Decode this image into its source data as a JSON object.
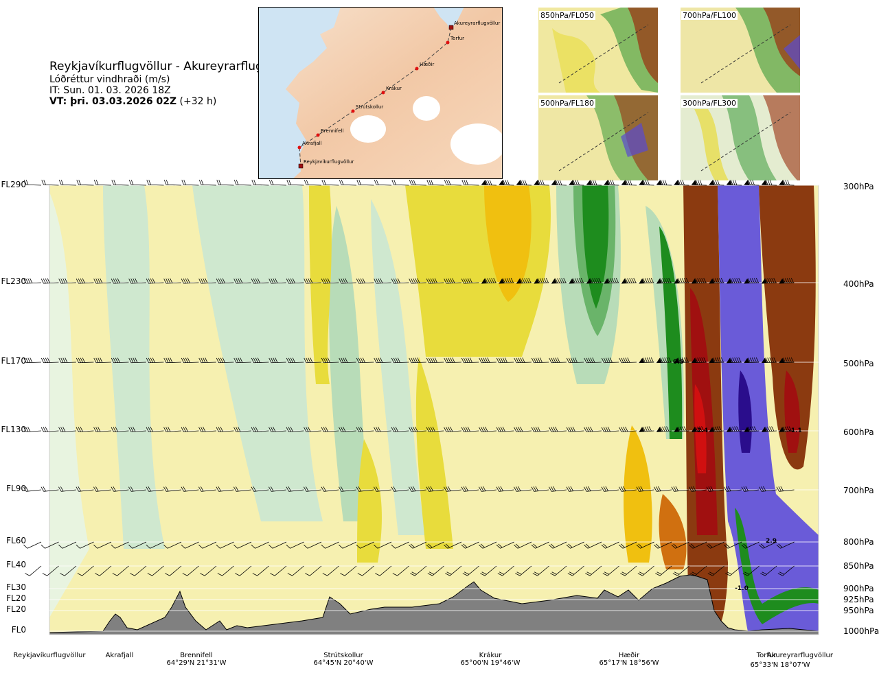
{
  "header": {
    "title": "Reykjavíkurflugvöllur - Akureyrarflugvöllur",
    "subtitle": "Lóðréttur vindhraði (m/s)",
    "init_time": "IT: Sun. 01. 03. 2026 18Z",
    "valid_time_bold": "VT: þri. 03.03.2026 02Z",
    "valid_time_rest": " (+32 h)"
  },
  "map": {
    "waypoints": [
      {
        "name": "Akureyrarflugvöllur"
      },
      {
        "name": "Torfur"
      },
      {
        "name": "Hæðir"
      },
      {
        "name": "Krákur"
      },
      {
        "name": "Strútskollur"
      },
      {
        "name": "Brennifell"
      },
      {
        "name": "Akrafjall"
      },
      {
        "name": "Reykjavíkurflugvöllur"
      }
    ]
  },
  "insets": [
    {
      "label": "850hPa/FL050"
    },
    {
      "label": "700hPa/FL100"
    },
    {
      "label": "500hPa/FL180"
    },
    {
      "label": "300hPa/FL300"
    }
  ],
  "chart_data": {
    "type": "heatmap",
    "title": "Reykjavíkurflugvöllur - Akureyrarflugvöllur",
    "subtitle": "Lóðréttur vindhraði (m/s)",
    "y_axis_left": [
      "FL290",
      "FL230",
      "FL170",
      "FL130",
      "FL90",
      "FL60",
      "FL40",
      "FL30",
      "FL20",
      "FL20",
      "FL0"
    ],
    "y_axis_right": [
      "300hPa",
      "400hPa",
      "500hPa",
      "600hPa",
      "700hPa",
      "800hPa",
      "850hPa",
      "900hPa",
      "925hPa",
      "950hPa",
      "1000hPa"
    ],
    "pressure_levels": [
      300,
      400,
      500,
      600,
      700,
      800,
      850,
      900,
      925,
      950,
      1000
    ],
    "x_locations": [
      {
        "name": "Reykjavíkurflugvöllur",
        "coord": ""
      },
      {
        "name": "Akrafjall",
        "coord": ""
      },
      {
        "name": "Brennifell",
        "coord": "64°29'N 21°31'W"
      },
      {
        "name": "Strútskollur",
        "coord": "64°45'N 20°40'W"
      },
      {
        "name": "Krákur",
        "coord": "65°00'N 19°46'W"
      },
      {
        "name": "Hæðir",
        "coord": "65°17'N 18°56'W"
      },
      {
        "name": "Torfur",
        "coord": "65°33'N 18°07'W"
      },
      {
        "name": "Akureyrarflugvöllur",
        "coord": ""
      }
    ],
    "annotations": [
      {
        "text": "0.9",
        "hpa": 500
      },
      {
        "text": "2.4",
        "hpa": 600
      },
      {
        "text": "-1.1",
        "hpa": 600
      },
      {
        "text": "2.9",
        "hpa": 800
      },
      {
        "text": "-1.0",
        "hpa": 900
      }
    ],
    "colors": {
      "strong_down": "#6a5bd8",
      "deep_down": "#2a0d8c",
      "down": "#1e8c1e",
      "weak_down": "#cfe8cf",
      "neutral": "#f6f0b0",
      "weak_up": "#e8dc3c",
      "up": "#f0c010",
      "strong_up": "#d07010",
      "very_strong_up": "#8b3a10",
      "extreme_up": "#a01010",
      "terrain": "#808080"
    }
  }
}
